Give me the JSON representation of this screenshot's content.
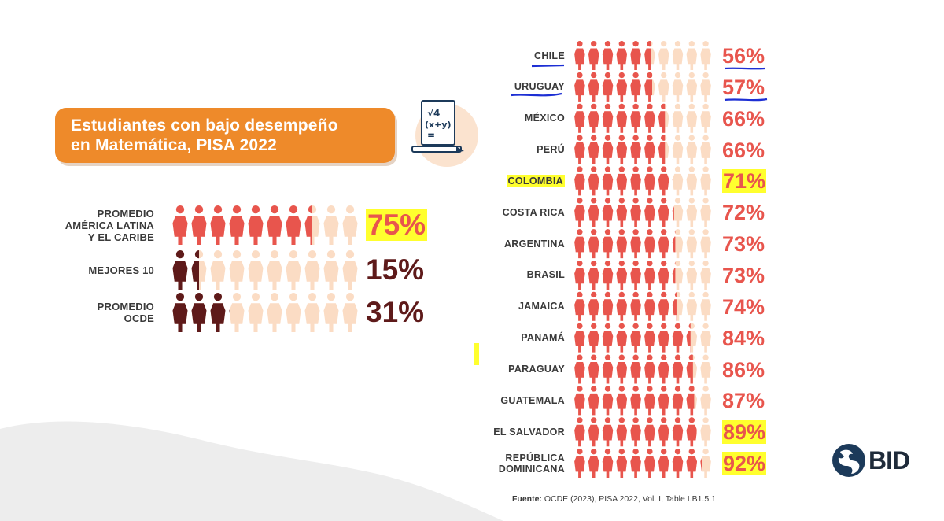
{
  "title": {
    "line1": "Estudiantes con bajo desempeño",
    "line2": "en Matemática, PISA 2022"
  },
  "icons": {
    "math": "math-formula-icon",
    "logo": "bid-globe-icon"
  },
  "colors": {
    "highlight": "#ffff2e",
    "coral": "#e8554d",
    "peach": "#fbdcc4",
    "dark": "#5e1a1a",
    "orange": "#ee8a2a"
  },
  "chart_data": [
    {
      "type": "pictograph",
      "unit": "%",
      "categories": [
        "PROMEDIO AMÉRICA LATINA Y EL CARIBE",
        "MEJORES 10",
        "PROMEDIO OCDE"
      ],
      "label_lines": [
        [
          "PROMEDIO",
          "AMÉRICA LATINA",
          "Y EL CARIBE"
        ],
        [
          "MEJORES 10"
        ],
        [
          "PROMEDIO",
          "OCDE"
        ]
      ],
      "values": [
        75,
        15,
        31
      ],
      "labels": [
        "75%",
        "15%",
        "31%"
      ],
      "highlighted": [
        true,
        false,
        false
      ],
      "icons_per_row": 10
    },
    {
      "type": "pictograph",
      "unit": "%",
      "categories": [
        "CHILE",
        "URUGUAY",
        "MÉXICO",
        "PERÚ",
        "COLOMBIA",
        "COSTA RICA",
        "ARGENTINA",
        "BRASIL",
        "JAMAICA",
        "PANAMÁ",
        "PARAGUAY",
        "GUATEMALA",
        "EL SALVADOR",
        "REPÚBLICA DOMINICANA"
      ],
      "label_lines": [
        [
          "CHILE"
        ],
        [
          "URUGUAY"
        ],
        [
          "MÉXICO"
        ],
        [
          "PERÚ"
        ],
        [
          "COLOMBIA"
        ],
        [
          "COSTA RICA"
        ],
        [
          "ARGENTINA"
        ],
        [
          "BRASIL"
        ],
        [
          "JAMAICA"
        ],
        [
          "PANAMÁ"
        ],
        [
          "PARAGUAY"
        ],
        [
          "GUATEMALA"
        ],
        [
          "EL SALVADOR"
        ],
        [
          "REPÚBLICA",
          "DOMINICANA"
        ]
      ],
      "values": [
        56,
        57,
        66,
        66,
        71,
        72,
        73,
        73,
        74,
        84,
        86,
        87,
        89,
        92
      ],
      "labels": [
        "56%",
        "57%",
        "66%",
        "66%",
        "71%",
        "72%",
        "73%",
        "73%",
        "74%",
        "84%",
        "86%",
        "87%",
        "89%",
        "92%"
      ],
      "highlighted_label": [
        false,
        false,
        false,
        false,
        true,
        false,
        false,
        false,
        false,
        false,
        false,
        false,
        false,
        false
      ],
      "highlighted_value": [
        false,
        false,
        false,
        false,
        true,
        false,
        false,
        false,
        false,
        false,
        false,
        false,
        true,
        true
      ],
      "underlined": [
        true,
        true,
        false,
        false,
        false,
        false,
        false,
        false,
        false,
        false,
        false,
        false,
        false,
        false
      ],
      "icons_per_row": 10
    }
  ],
  "footer": {
    "label": "Fuente:",
    "text": " OCDE (2023), PISA 2022, Vol. I, Table I.B1.5.1"
  },
  "brand": {
    "name": "BID"
  }
}
